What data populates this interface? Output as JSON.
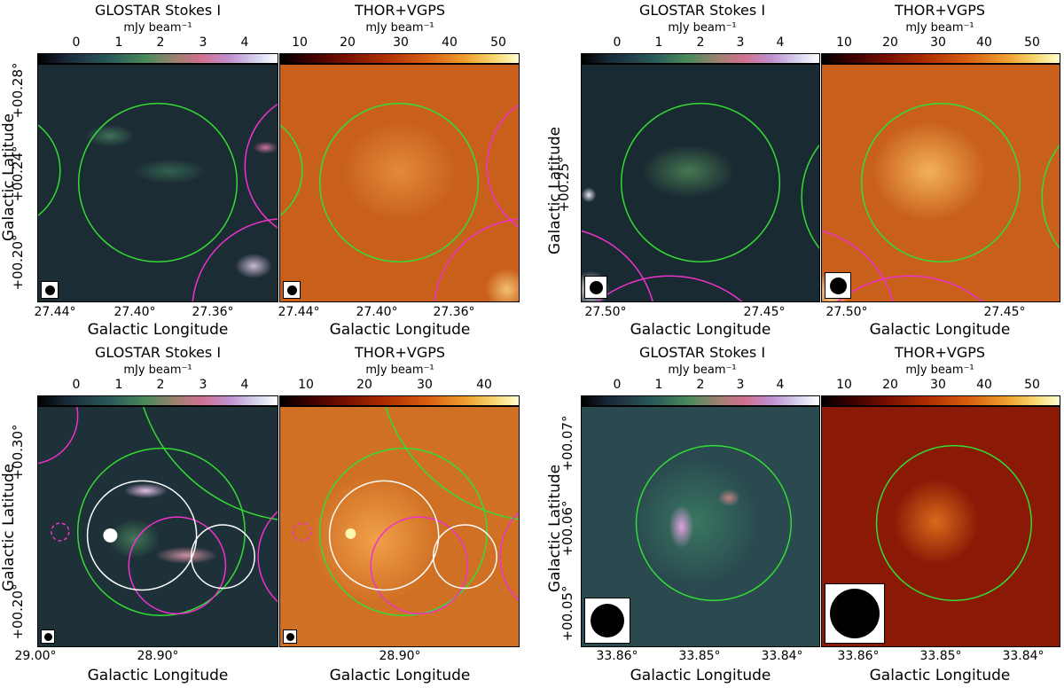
{
  "titles": {
    "glostar": "GLOSTAR Stokes I",
    "thor": "THOR+VGPS"
  },
  "colorbar_unit": "mJy beam⁻¹",
  "axis_labels": {
    "x": "Galactic Longitude",
    "y": "Galactic Latitude"
  },
  "colorbar_ticks": {
    "glostar": [
      "0",
      "1",
      "2",
      "3",
      "4"
    ],
    "thor_a": [
      "10",
      "20",
      "30",
      "40",
      "50"
    ],
    "thor_c": [
      "10",
      "20",
      "30",
      "40"
    ]
  },
  "panel_a": {
    "yticks": [
      "+00.28°",
      "+00.24°",
      "+00.20°"
    ],
    "xticks": [
      "27.44°",
      "27.40°",
      "27.36°"
    ]
  },
  "panel_b": {
    "yticks": [
      "+00.25°"
    ],
    "xticks": [
      "27.50°",
      "27.45°"
    ]
  },
  "panel_c": {
    "yticks": [
      "+00.30°",
      "+00.20°"
    ],
    "xticks_left": [
      "29.00°",
      "28.90°"
    ],
    "xticks_right": [
      "28.90°"
    ]
  },
  "panel_d": {
    "yticks": [
      "+00.07°",
      "+00.06°",
      "+00.05°"
    ],
    "xticks": [
      "33.86°",
      "33.85°",
      "33.84°"
    ]
  },
  "colors": {
    "green_circle": "#33dd33",
    "magenta_circle": "#ee33cc",
    "white_circle": "#ffffff"
  }
}
